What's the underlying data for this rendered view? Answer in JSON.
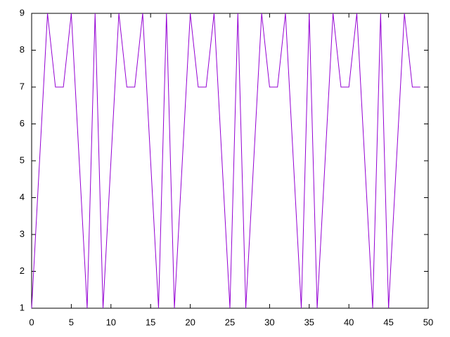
{
  "chart_data": {
    "type": "line",
    "x": [
      0,
      1,
      2,
      3,
      4,
      5,
      6,
      7,
      8,
      9,
      10,
      11,
      12,
      13,
      14,
      15,
      16,
      17,
      18,
      19,
      20,
      21,
      22,
      23,
      24,
      25,
      26,
      27,
      28,
      29,
      30,
      31,
      32,
      33,
      34,
      35,
      36,
      37,
      38,
      39,
      40,
      41,
      42,
      43,
      44,
      45,
      46,
      47,
      48,
      49
    ],
    "series": [
      {
        "color": "#9400d3",
        "values": [
          1,
          5,
          9,
          7,
          7,
          9,
          5,
          1,
          9,
          1,
          5,
          9,
          7,
          7,
          9,
          5,
          1,
          9,
          1,
          5,
          9,
          7,
          7,
          9,
          5,
          1,
          9,
          1,
          5,
          9,
          7,
          7,
          9,
          5,
          1,
          9,
          1,
          5,
          9,
          7,
          7,
          9,
          5,
          1,
          9,
          1,
          5,
          9,
          7,
          7
        ]
      }
    ],
    "xlim": [
      0,
      50
    ],
    "xticks": [
      0,
      5,
      10,
      15,
      20,
      25,
      30,
      35,
      40,
      45,
      50
    ],
    "ylim": [
      1,
      9
    ],
    "yticks": [
      1,
      2,
      3,
      4,
      5,
      6,
      7,
      8,
      9
    ],
    "grid": false
  }
}
